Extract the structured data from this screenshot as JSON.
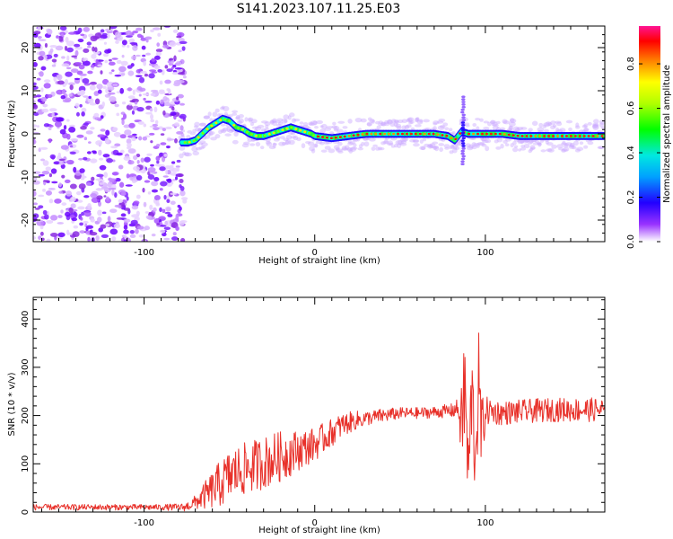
{
  "figure_title": "S141.2023.107.11.25.E03",
  "chart_data": [
    {
      "type": "heatmap",
      "title": "",
      "xlabel": "Height of straight line (km)",
      "ylabel": "Frequency (Hz)",
      "xlim": [
        -165,
        170
      ],
      "ylim": [
        -25,
        25
      ],
      "xticks": [
        -100,
        0,
        100
      ],
      "yticks": [
        -20,
        -10,
        0,
        10,
        20
      ],
      "colorbar": {
        "label": "Normalized spectral amplitude",
        "range": [
          0,
          0.97
        ],
        "ticks": [
          "0.0",
          "0.2",
          "0.4",
          "0.6",
          "0.8"
        ],
        "tick_values": [
          0,
          0.2,
          0.4,
          0.6,
          0.8
        ]
      },
      "noise_region_x": [
        -165,
        -76
      ],
      "ridge": {
        "x": [
          -78,
          -74,
          -70,
          -66,
          -62,
          -58,
          -54,
          -50,
          -46,
          -42,
          -38,
          -34,
          -30,
          -26,
          -22,
          -18,
          -14,
          -10,
          -6,
          -2,
          0,
          10,
          20,
          30,
          40,
          50,
          60,
          70,
          78,
          82,
          86,
          90,
          100,
          110,
          120,
          130,
          140,
          150,
          160,
          170
        ],
        "y": [
          -2,
          -2,
          -1.5,
          0,
          1.5,
          2.5,
          3.5,
          3,
          1.5,
          1,
          0,
          -0.5,
          -0.5,
          0,
          0.5,
          1,
          1.5,
          1,
          0.5,
          0,
          -0.5,
          -1,
          -0.5,
          0,
          0,
          0,
          0,
          0,
          -0.5,
          -1.5,
          0.5,
          0,
          0,
          0,
          -0.5,
          -0.5,
          -0.5,
          -0.5,
          -0.5,
          -0.5
        ]
      },
      "spike": {
        "x": 87,
        "y_range": [
          -7,
          9
        ]
      }
    },
    {
      "type": "line",
      "title": "",
      "xlabel": "Height of straight line (km)",
      "ylabel": "SNR (10 * v/v)",
      "xlim": [
        -165,
        170
      ],
      "ylim": [
        0,
        445
      ],
      "xticks": [
        -100,
        0,
        100
      ],
      "yticks": [
        0,
        100,
        200,
        300,
        400
      ],
      "series": [
        {
          "color": "#e8312a",
          "x": [
            -165,
            -150,
            -130,
            -110,
            -90,
            -76,
            -70,
            -62,
            -55,
            -48,
            -40,
            -32,
            -24,
            -16,
            -8,
            0,
            8,
            16,
            24,
            32,
            40,
            50,
            60,
            70,
            80,
            84,
            86,
            88,
            90,
            92,
            94,
            96,
            98,
            100,
            110,
            120,
            130,
            140,
            150,
            160,
            170
          ],
          "values": [
            10,
            10,
            10,
            10,
            10,
            10,
            20,
            40,
            60,
            80,
            90,
            100,
            110,
            120,
            130,
            140,
            160,
            180,
            190,
            195,
            200,
            205,
            205,
            207,
            210,
            215,
            180,
            260,
            70,
            250,
            120,
            260,
            150,
            210,
            205,
            208,
            210,
            212,
            212,
            212,
            212
          ],
          "amplitude": [
            6,
            6,
            6,
            6,
            6,
            8,
            15,
            35,
            50,
            55,
            55,
            55,
            55,
            50,
            40,
            35,
            30,
            25,
            20,
            15,
            15,
            12,
            12,
            12,
            15,
            20,
            80,
            170,
            70,
            110,
            90,
            120,
            90,
            30,
            25,
            25,
            25,
            25,
            25,
            25,
            25
          ]
        }
      ]
    }
  ]
}
